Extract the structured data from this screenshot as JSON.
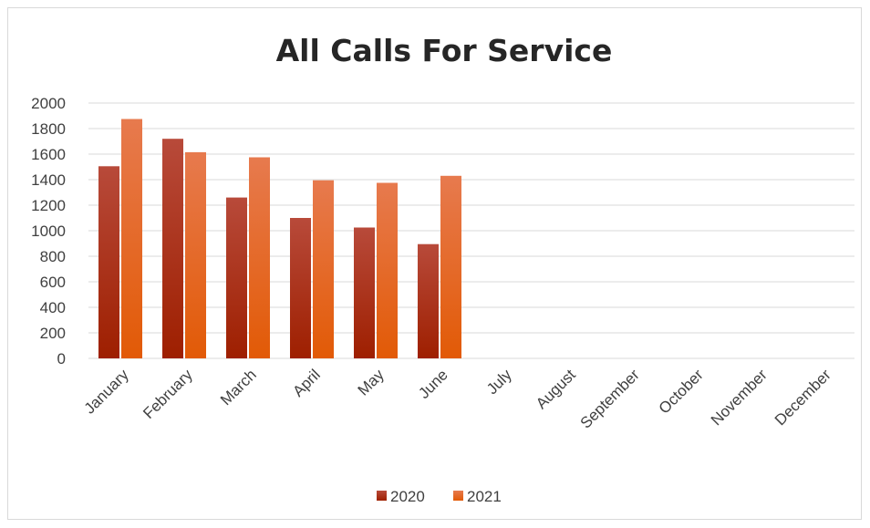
{
  "chart_data": {
    "type": "bar",
    "title": "All Calls For Service",
    "xlabel": "",
    "ylabel": "",
    "categories": [
      "January",
      "February",
      "March",
      "April",
      "May",
      "June",
      "July",
      "August",
      "September",
      "October",
      "November",
      "December"
    ],
    "series": [
      {
        "name": "2020",
        "color": "#a32a0e",
        "values": [
          1505,
          1720,
          1260,
          1100,
          1025,
          895,
          null,
          null,
          null,
          null,
          null,
          null
        ]
      },
      {
        "name": "2021",
        "color": "#e8651e",
        "values": [
          1875,
          1615,
          1575,
          1395,
          1375,
          1430,
          null,
          null,
          null,
          null,
          null,
          null
        ]
      }
    ],
    "ylim": [
      0,
      2000
    ],
    "yticks": [
      0,
      200,
      400,
      600,
      800,
      1000,
      1200,
      1400,
      1600,
      1800,
      2000
    ],
    "grid": true,
    "legend": "bottom"
  }
}
